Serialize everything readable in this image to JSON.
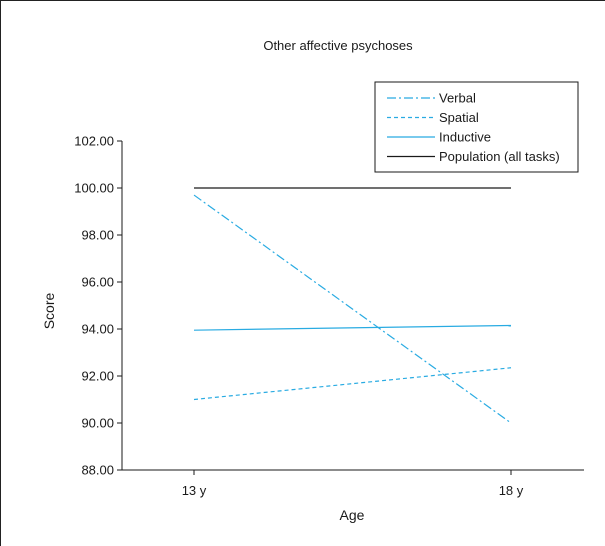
{
  "chart_data": {
    "type": "line",
    "title": "Other affective psychoses",
    "xlabel": "Age",
    "ylabel": "Score",
    "categories": [
      "13 y",
      "18 y"
    ],
    "ylim": [
      88.0,
      102.0
    ],
    "yticks": [
      "88.00",
      "90.00",
      "92.00",
      "94.00",
      "96.00",
      "98.00",
      "100.00",
      "102.00"
    ],
    "grid": false,
    "legend_position": "top-right",
    "series": [
      {
        "name": "Verbal",
        "values": [
          99.7,
          90.0
        ],
        "color": "#29abe2",
        "dash": "dash-dot"
      },
      {
        "name": "Spatial",
        "values": [
          91.0,
          92.35
        ],
        "color": "#29abe2",
        "dash": "dashed"
      },
      {
        "name": "Inductive",
        "values": [
          93.95,
          94.15
        ],
        "color": "#29abe2",
        "dash": "solid"
      },
      {
        "name": "Population (all tasks)",
        "values": [
          100.0,
          100.0
        ],
        "color": "#1a1a1a",
        "dash": "solid"
      }
    ]
  }
}
